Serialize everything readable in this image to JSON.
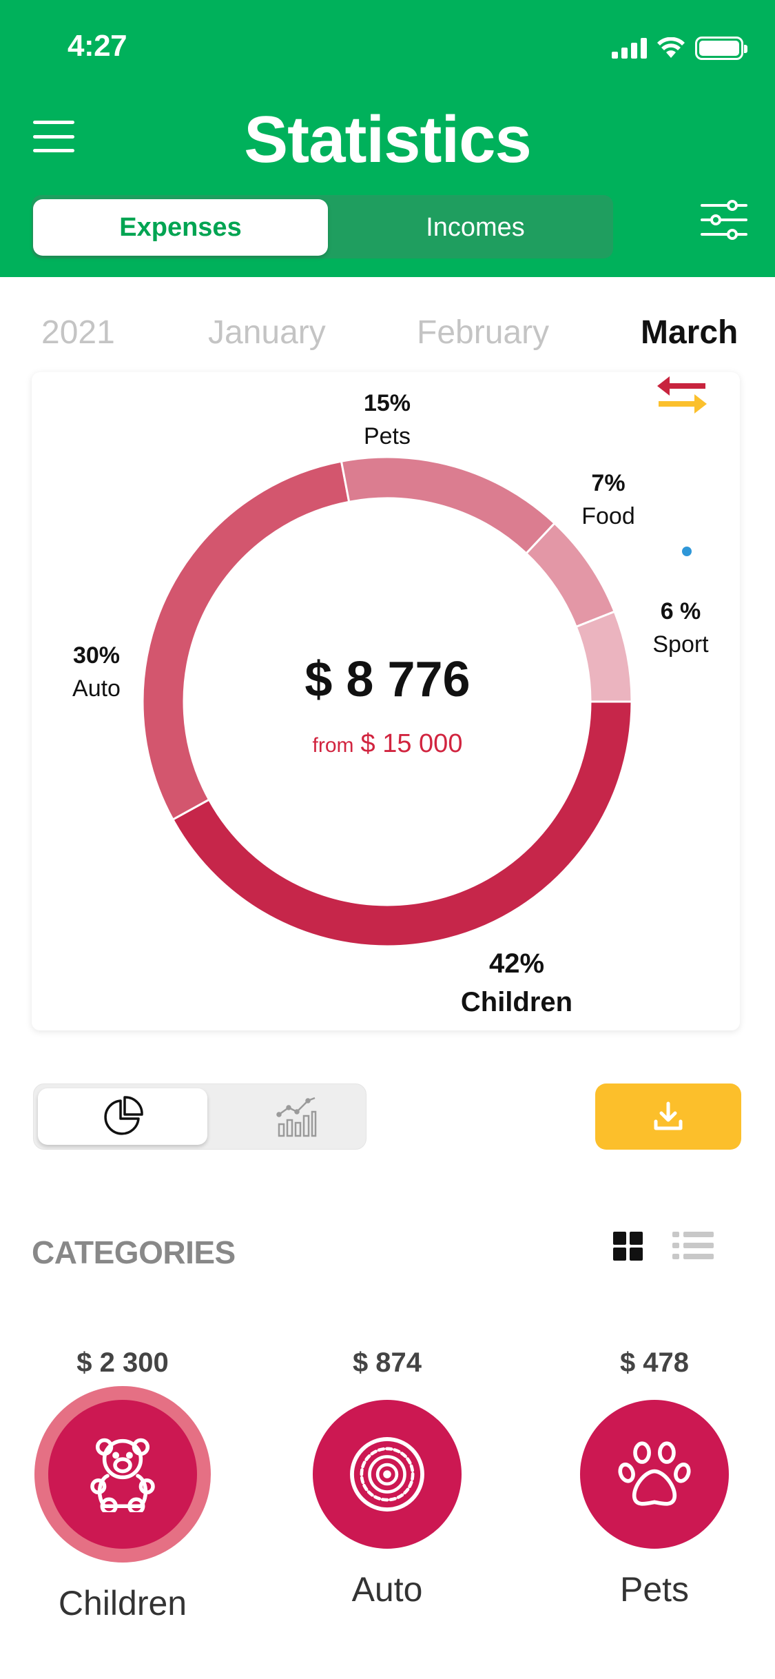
{
  "status_bar": {
    "time": "4:27"
  },
  "header": {
    "title": "Statistics",
    "tabs": [
      {
        "label": "Expenses",
        "active": true
      },
      {
        "label": "Incomes",
        "active": false
      }
    ]
  },
  "periods": [
    {
      "label": "2021",
      "active": false
    },
    {
      "label": "January",
      "active": false
    },
    {
      "label": "February",
      "active": false
    },
    {
      "label": "March",
      "active": true
    }
  ],
  "summary": {
    "total": "$ 8 776",
    "from_word": "from",
    "from_amount": "$ 15 000"
  },
  "chart_data": {
    "type": "pie",
    "labels": [
      "Children",
      "Auto",
      "Pets",
      "Food",
      "Sport"
    ],
    "values": [
      42,
      30,
      15,
      7,
      6
    ],
    "pct_labels": [
      "42%",
      "30%",
      "15%",
      "7%",
      "6 %"
    ],
    "colors": [
      "#c6264a",
      "#d3566e",
      "#db7d90",
      "#e397a6",
      "#ebb4bf"
    ]
  },
  "categories": {
    "title": "CATEGORIES",
    "items": [
      {
        "amount": "$ 2 300",
        "name": "Children",
        "icon": "teddy-bear-icon",
        "selected": true
      },
      {
        "amount": "$ 874",
        "name": "Auto",
        "icon": "tire-icon",
        "selected": false
      },
      {
        "amount": "$ 478",
        "name": "Pets",
        "icon": "paw-icon",
        "selected": false
      }
    ]
  },
  "colors": {
    "header_green": "#00b15b",
    "accent_red": "#d1243f",
    "category_red": "#cc1852",
    "export_yellow": "#fcbf2b"
  }
}
